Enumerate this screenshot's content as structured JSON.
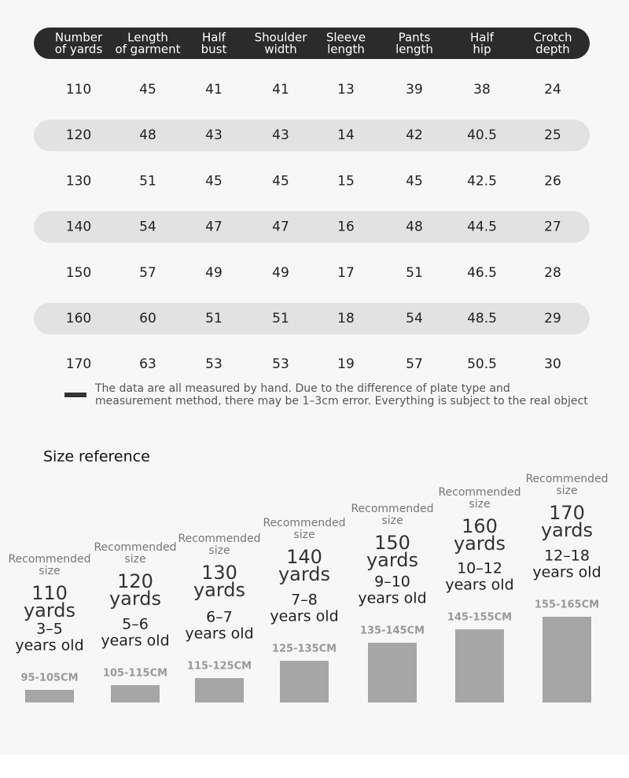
{
  "table": {
    "header": [
      [
        "Number",
        "of yards"
      ],
      [
        "Length",
        "of garment"
      ],
      [
        "Half",
        "bust"
      ],
      [
        "Shoulder",
        "width"
      ],
      [
        "Sleeve",
        "length"
      ],
      [
        "Pants",
        "length"
      ],
      [
        "Half",
        "hip"
      ],
      [
        "Crotch",
        "depth"
      ]
    ],
    "rows": [
      [
        110,
        45,
        41,
        41,
        13,
        39,
        38,
        24
      ],
      [
        120,
        48,
        43,
        43,
        14,
        42,
        40.5,
        25
      ],
      [
        130,
        51,
        45,
        45,
        15,
        45,
        42.5,
        26
      ],
      [
        140,
        54,
        47,
        47,
        16,
        48,
        44.5,
        27
      ],
      [
        150,
        57,
        49,
        49,
        17,
        51,
        46.5,
        28
      ],
      [
        160,
        60,
        51,
        51,
        18,
        54,
        48.5,
        29
      ],
      [
        170,
        63,
        53,
        53,
        19,
        57,
        50.5,
        30
      ]
    ]
  },
  "note": [
    "The data are all measured by hand. Due to the difference of plate type and",
    "measurement method, there may be 1–3cm error. Everything is subject to the real object"
  ],
  "size_reference": {
    "title": "Size reference",
    "cards": [
      {
        "recommended": [
          "Recommended",
          "size"
        ],
        "size": [
          "110",
          "yards"
        ],
        "age": [
          "3–5",
          "years old"
        ],
        "range": "95-105CM"
      },
      {
        "recommended": [
          "Recommended",
          "size"
        ],
        "size": [
          "120",
          "yards"
        ],
        "age": [
          "5–6",
          "years old"
        ],
        "range": "105-115CM"
      },
      {
        "recommended": [
          "Recommended",
          "size"
        ],
        "size": [
          "130",
          "yards"
        ],
        "age": [
          "6–7",
          "years old"
        ],
        "range": "115-125CM"
      },
      {
        "recommended": [
          "Recommended",
          "size"
        ],
        "size": [
          "140",
          "yards"
        ],
        "age": [
          "7–8",
          "years old"
        ],
        "range": "125-135CM"
      },
      {
        "recommended": [
          "Recommended",
          "size"
        ],
        "size": [
          "150",
          "yards"
        ],
        "age": [
          "9–10",
          "years old"
        ],
        "range": "135-145CM"
      },
      {
        "recommended": [
          "Recommended",
          "size"
        ],
        "size": [
          "160",
          "yards"
        ],
        "age": [
          "10–12",
          "years old"
        ],
        "range": "145-155CM"
      },
      {
        "recommended": [
          "Recommended",
          "size"
        ],
        "size": [
          "170",
          "yards"
        ],
        "age": [
          "12–18",
          "years old"
        ],
        "range": "155-165CM"
      }
    ]
  }
}
